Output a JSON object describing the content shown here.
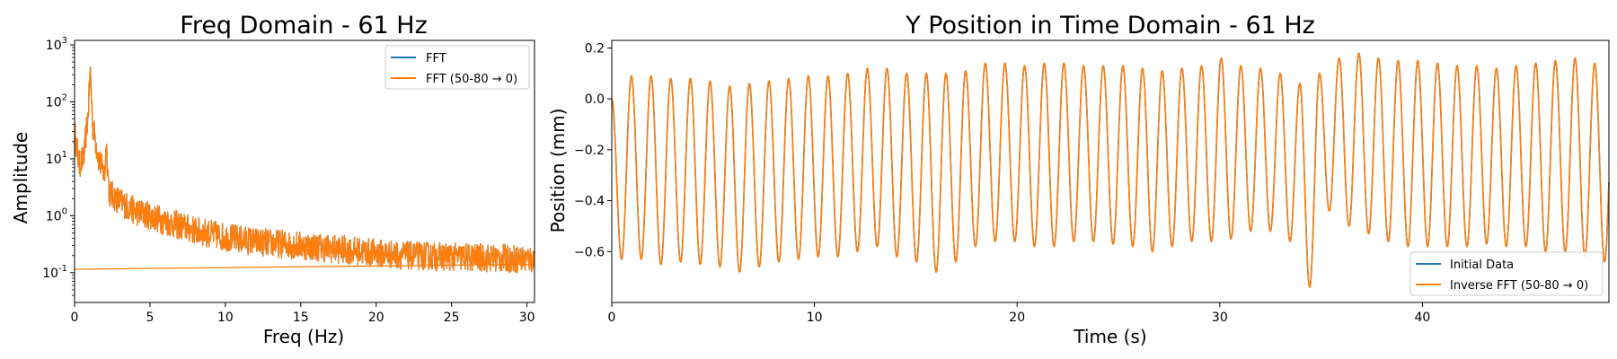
{
  "chart_data": [
    {
      "type": "line",
      "title": "Freq Domain - 61 Hz",
      "xlabel": "Freq (Hz)",
      "ylabel": "Amplitude",
      "xlim": [
        0,
        30.5
      ],
      "ylim": [
        0.03,
        1200
      ],
      "yscale": "log",
      "grid": false,
      "legend_position": "top-right",
      "xticks": [
        0,
        5,
        10,
        15,
        20,
        25,
        30
      ],
      "yticks": [
        {
          "exp": "-1",
          "value": 0.1
        },
        {
          "exp": "0",
          "value": 1
        },
        {
          "exp": "1",
          "value": 10
        },
        {
          "exp": "2",
          "value": 100
        },
        {
          "exp": "3",
          "value": 1000
        }
      ],
      "series": [
        {
          "name": "FFT",
          "color": "#1f77b4",
          "x": [
            0,
            0.3,
            0.6,
            0.9,
            1.05,
            1.2,
            1.6,
            2.0,
            2.1,
            2.3,
            3,
            4,
            5,
            6,
            8,
            10,
            12,
            15,
            18,
            20,
            22,
            25,
            28,
            30.5
          ],
          "y": [
            30,
            8,
            10,
            60,
            380,
            40,
            10,
            5,
            20,
            2.5,
            1.8,
            1.2,
            1.0,
            0.8,
            0.55,
            0.42,
            0.35,
            0.3,
            0.25,
            0.22,
            0.2,
            0.19,
            0.18,
            0.17
          ]
        },
        {
          "name": "FFT (50-80 → 0)",
          "color": "#ff7f0e",
          "x": [
            0,
            0.3,
            0.6,
            0.9,
            1.05,
            1.2,
            1.6,
            2.0,
            2.1,
            2.3,
            3,
            4,
            5,
            6,
            8,
            10,
            12,
            15,
            18,
            20,
            22,
            25,
            28,
            30.5
          ],
          "y": [
            30,
            8,
            10,
            60,
            380,
            40,
            10,
            5,
            20,
            2.5,
            1.8,
            1.2,
            1.0,
            0.8,
            0.55,
            0.42,
            0.35,
            0.3,
            0.25,
            0.22,
            0.2,
            0.19,
            0.18,
            0.17
          ]
        }
      ],
      "baseline_series": {
        "name": "FFT (50-80 → 0)",
        "x": [
          0,
          30.5
        ],
        "y": [
          0.115,
          0.14
        ]
      }
    },
    {
      "type": "line",
      "title": "Y Position in Time Domain - 61 Hz",
      "xlabel": "Time (s)",
      "ylabel": "Position (mm)",
      "xlim": [
        0,
        49.2
      ],
      "ylim": [
        -0.8,
        0.23
      ],
      "yscale": "linear",
      "grid": false,
      "legend_position": "bottom-right",
      "xticks": [
        0,
        10,
        20,
        30,
        40
      ],
      "yticks": [
        -0.6,
        -0.4,
        -0.2,
        0.0,
        0.2
      ],
      "oscillation": {
        "period_s": 0.97,
        "start_value": 0.0,
        "peak_values": [
          0.09,
          0.09,
          0.08,
          0.08,
          0.07,
          0.05,
          0.06,
          0.07,
          0.08,
          0.09,
          0.09,
          0.1,
          0.12,
          0.12,
          0.1,
          0.1,
          0.1,
          0.11,
          0.14,
          0.14,
          0.13,
          0.14,
          0.14,
          0.13,
          0.13,
          0.13,
          0.12,
          0.11,
          0.12,
          0.13,
          0.16,
          0.13,
          0.12,
          0.1,
          0.06,
          0.1,
          0.16,
          0.18,
          0.16,
          0.15,
          0.15,
          0.14,
          0.13,
          0.13,
          0.12,
          0.13,
          0.14,
          0.15,
          0.16,
          0.14,
          0.12
        ],
        "trough_values": [
          -0.63,
          -0.63,
          -0.65,
          -0.64,
          -0.65,
          -0.66,
          -0.68,
          -0.66,
          -0.64,
          -0.63,
          -0.62,
          -0.62,
          -0.6,
          -0.58,
          -0.62,
          -0.64,
          -0.68,
          -0.64,
          -0.58,
          -0.56,
          -0.56,
          -0.58,
          -0.58,
          -0.56,
          -0.56,
          -0.57,
          -0.58,
          -0.6,
          -0.58,
          -0.56,
          -0.56,
          -0.55,
          -0.52,
          -0.52,
          -0.56,
          -0.74,
          -0.44,
          -0.5,
          -0.53,
          -0.56,
          -0.58,
          -0.58,
          -0.58,
          -0.58,
          -0.57,
          -0.58,
          -0.58,
          -0.6,
          -0.6,
          -0.62,
          -0.64
        ]
      },
      "series": [
        {
          "name": "Initial Data",
          "color": "#1f77b4"
        },
        {
          "name": "Inverse FFT (50-80 → 0)",
          "color": "#ff7f0e"
        }
      ]
    }
  ]
}
